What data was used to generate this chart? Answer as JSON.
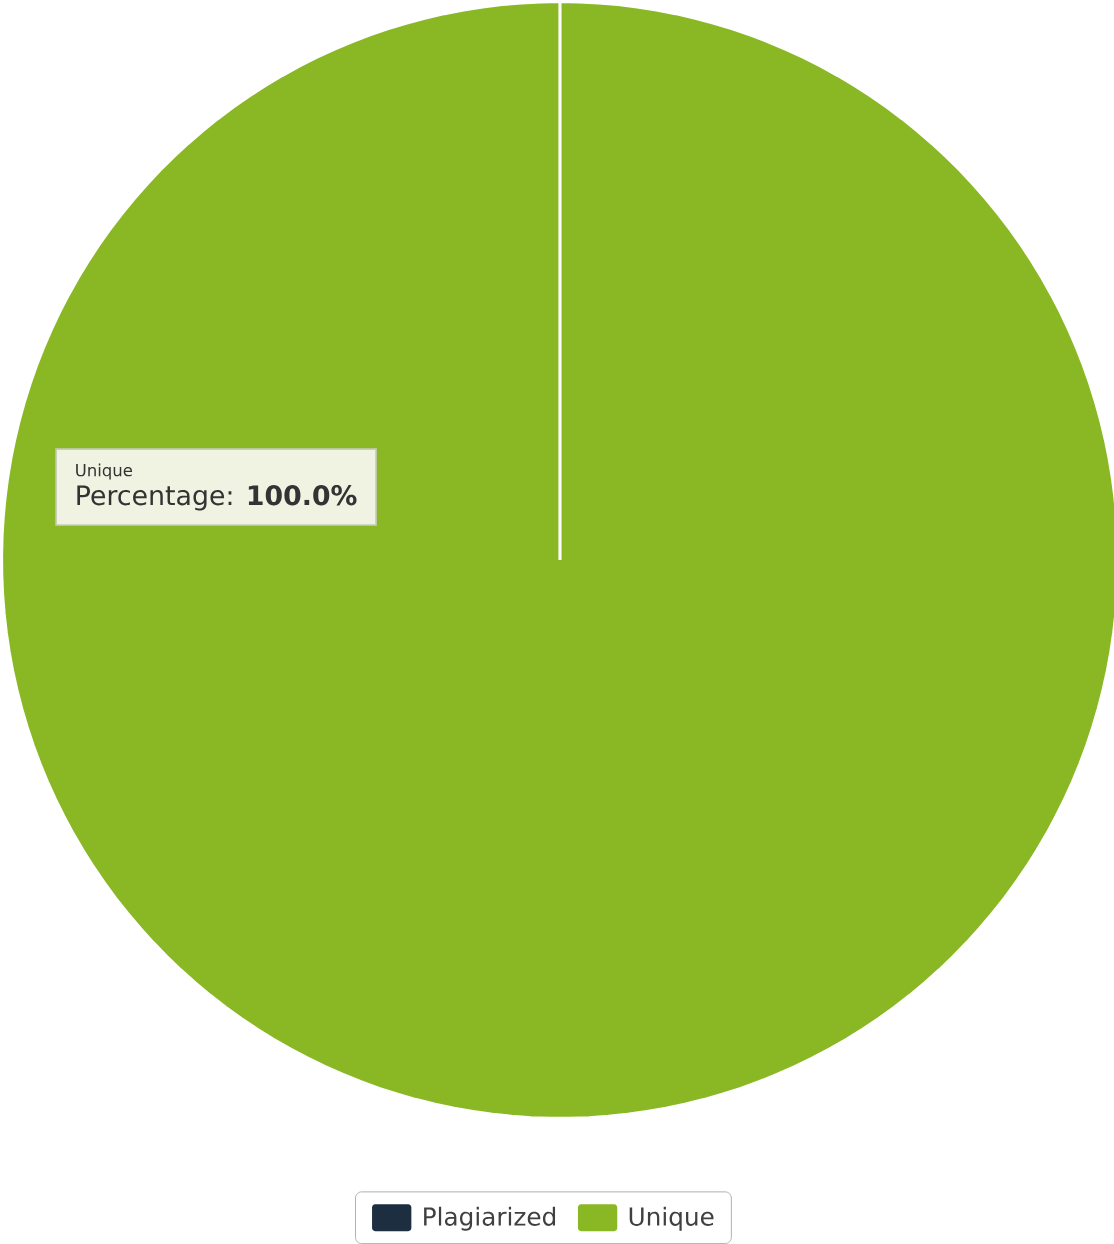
{
  "chart_data": {
    "type": "pie",
    "categories": [
      "Plagiarized",
      "Unique"
    ],
    "values": [
      0,
      100
    ],
    "colors": [
      "#1c2e40",
      "#8ab825"
    ],
    "legend": "bottom",
    "annotations": [
      "Unique",
      "Percentage: **100.0%**"
    ]
  }
}
